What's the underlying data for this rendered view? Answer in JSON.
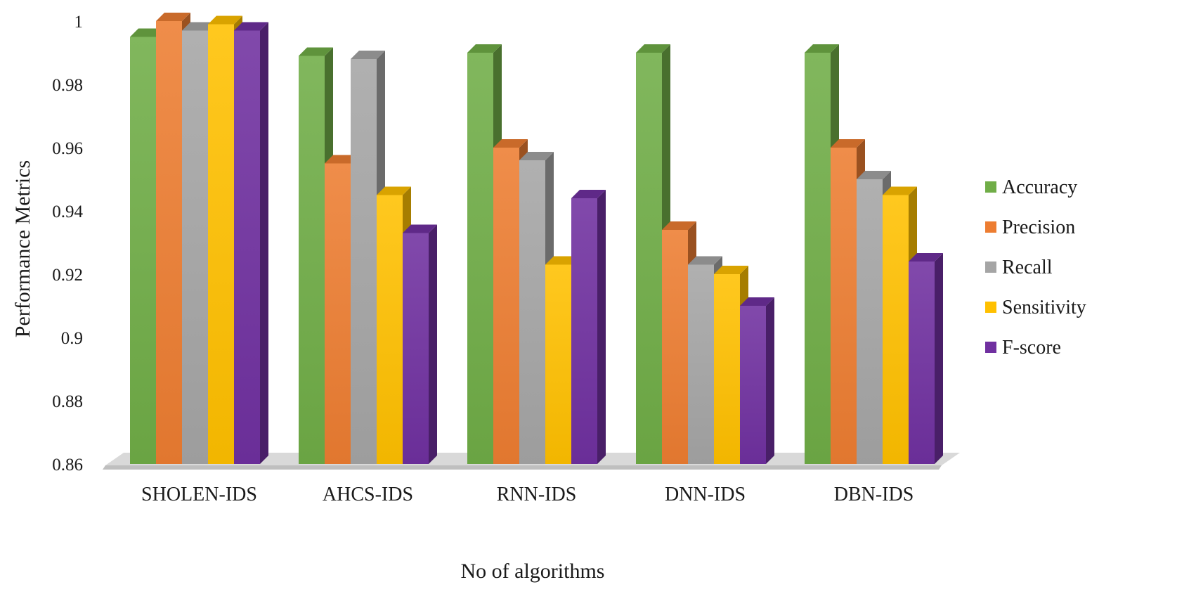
{
  "chart_data": {
    "type": "bar",
    "title": "",
    "xlabel": "No of algorithms",
    "ylabel": "Performance Metrics",
    "ylim": [
      0.86,
      1.0
    ],
    "yticks": [
      "0.86",
      "0.88",
      "0.9",
      "0.92",
      "0.94",
      "0.96",
      "0.98",
      "1"
    ],
    "categories": [
      "SHOLEN-IDS",
      "AHCS-IDS",
      "RNN-IDS",
      "DNN-IDS",
      "DBN-IDS"
    ],
    "series": [
      {
        "name": "Accuracy",
        "color": "#70ad47",
        "values": [
          0.995,
          0.989,
          0.99,
          0.99,
          0.99
        ]
      },
      {
        "name": "Precision",
        "color": "#ed7d31",
        "values": [
          1.0,
          0.955,
          0.96,
          0.934,
          0.96
        ]
      },
      {
        "name": "Recall",
        "color": "#a5a5a5",
        "values": [
          0.997,
          0.988,
          0.956,
          0.923,
          0.95
        ]
      },
      {
        "name": "Sensitivity",
        "color": "#ffc000",
        "values": [
          0.999,
          0.945,
          0.923,
          0.92,
          0.945
        ]
      },
      {
        "name": "F-score",
        "color": "#7030a0",
        "values": [
          0.997,
          0.933,
          0.944,
          0.91,
          0.924
        ]
      }
    ],
    "legend_position": "right",
    "grid": false
  }
}
